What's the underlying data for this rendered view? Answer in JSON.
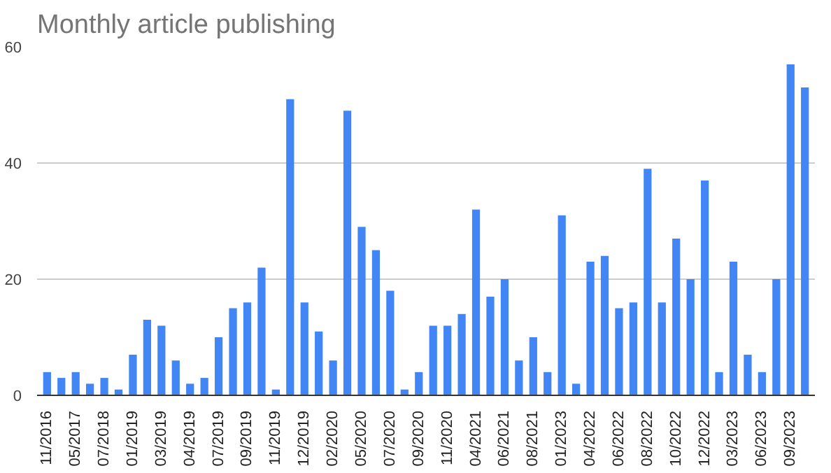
{
  "chart_data": {
    "type": "bar",
    "title": "Monthly article publishing",
    "categories": [
      "11/2016",
      null,
      "05/2017",
      null,
      "07/2018",
      null,
      "01/2019",
      null,
      "03/2019",
      null,
      "04/2019",
      null,
      "07/2019",
      null,
      "09/2019",
      null,
      "11/2019",
      null,
      "12/2019",
      null,
      "02/2020",
      null,
      "05/2020",
      null,
      "07/2020",
      null,
      "09/2020",
      null,
      "11/2020",
      null,
      "04/2021",
      null,
      "06/2021",
      null,
      "08/2021",
      null,
      "01/2023",
      null,
      "04/2022",
      null,
      "06/2022",
      null,
      "08/2022",
      null,
      "10/2022",
      null,
      "12/2022",
      null,
      "03/2023",
      null,
      "06/2023",
      null,
      "09/2023",
      null
    ],
    "values": [
      4,
      3,
      4,
      2,
      3,
      1,
      7,
      13,
      12,
      6,
      2,
      3,
      10,
      15,
      16,
      22,
      1,
      51,
      16,
      11,
      6,
      49,
      29,
      25,
      18,
      1,
      4,
      12,
      12,
      14,
      32,
      17,
      20,
      6,
      10,
      4,
      31,
      2,
      23,
      24,
      15,
      16,
      39,
      16,
      27,
      20,
      37,
      4,
      23,
      7,
      4,
      20,
      57,
      53
    ],
    "color": "#4285f4",
    "ylim": [
      0,
      60
    ],
    "yticks": [
      0,
      20,
      40,
      60
    ],
    "grid": "y"
  }
}
